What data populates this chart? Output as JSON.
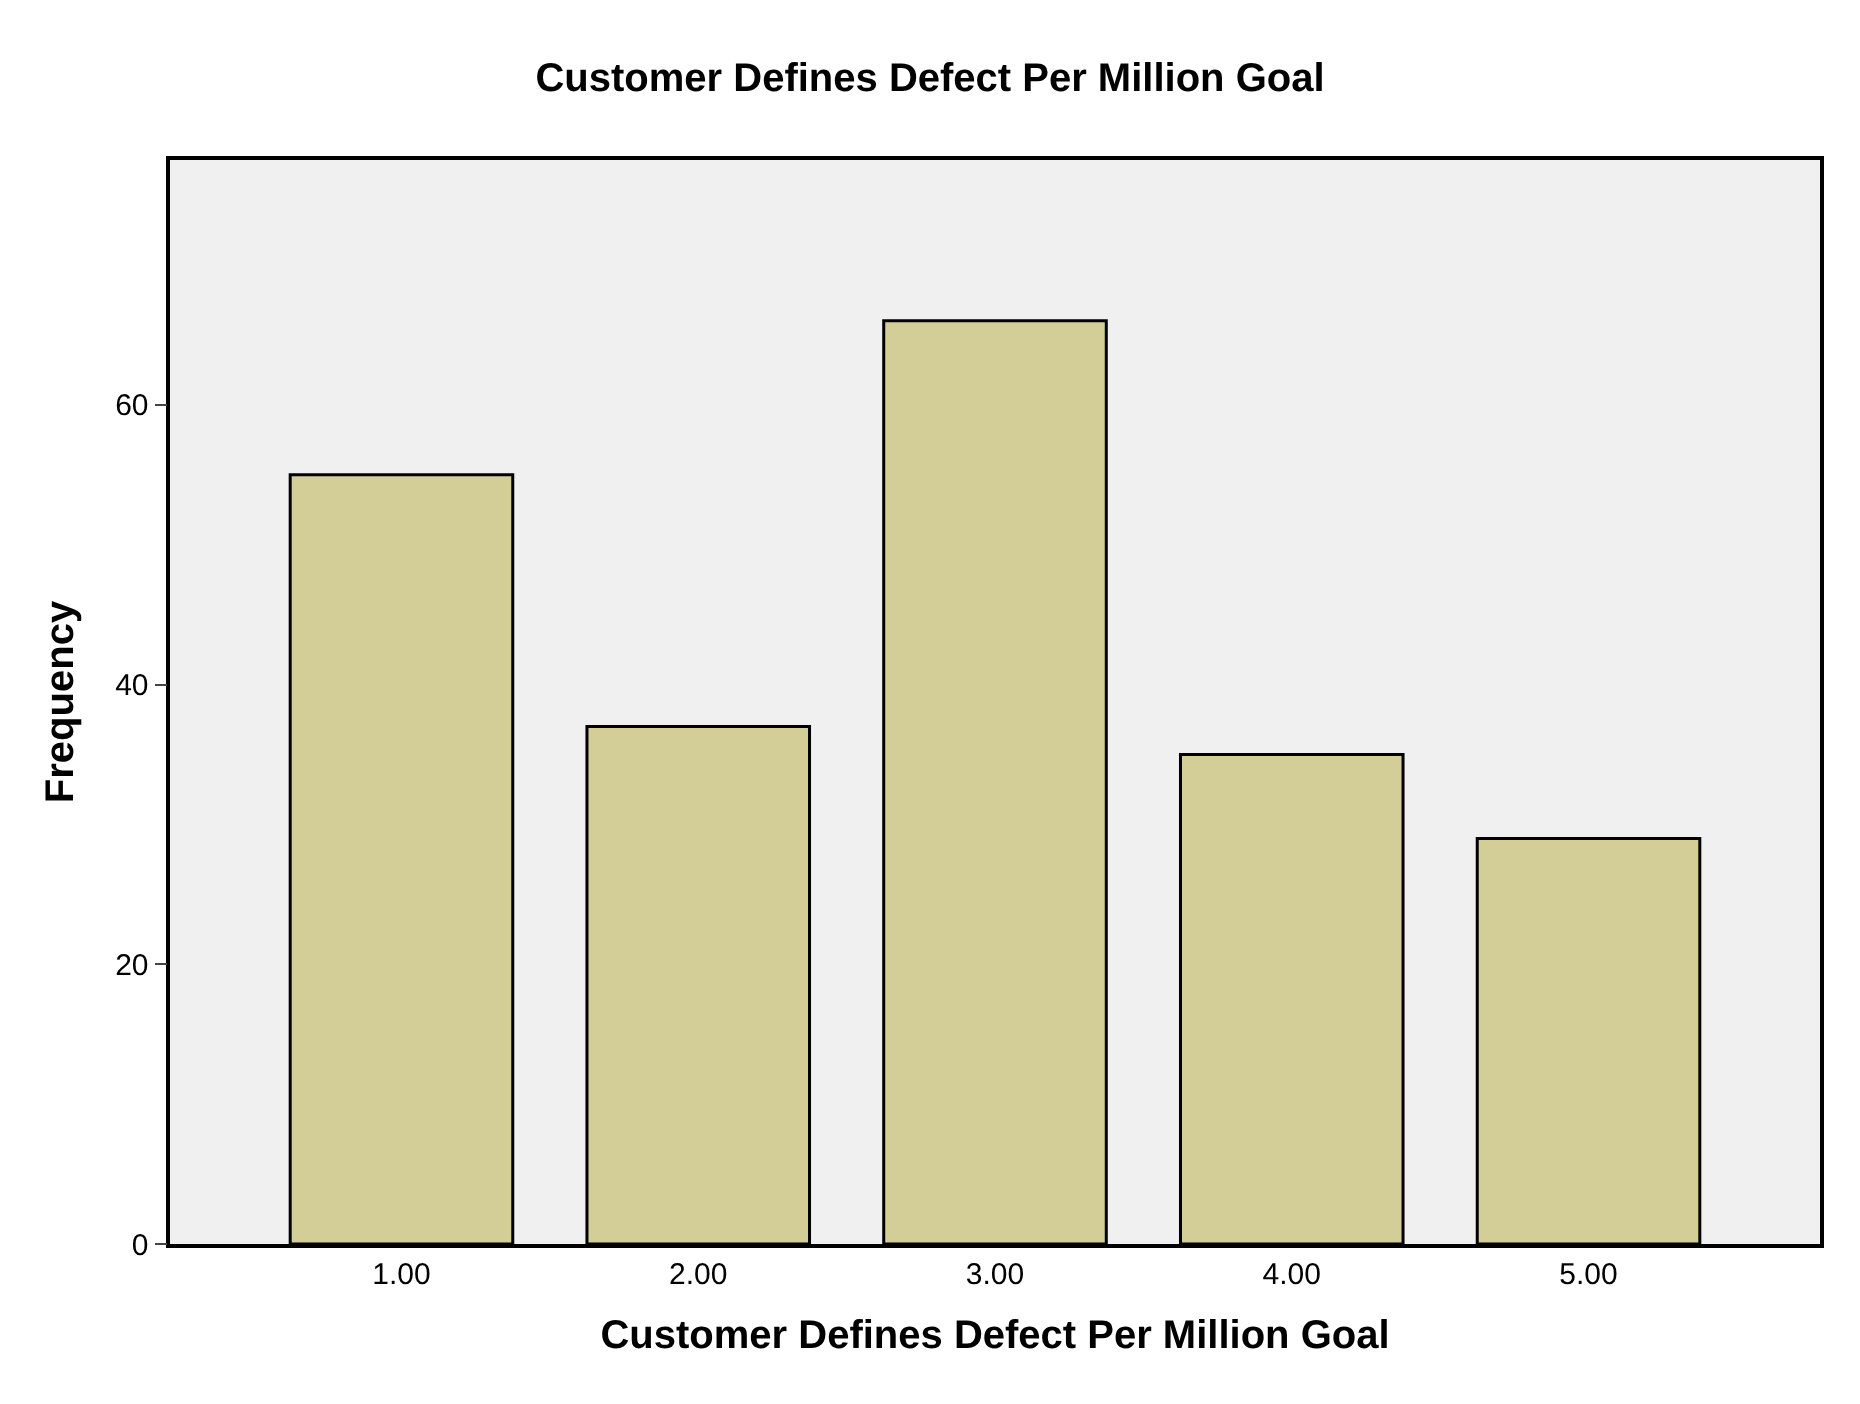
{
  "chart_data": {
    "type": "bar",
    "title": "Customer Defines Defect Per Million Goal",
    "xlabel": "Customer Defines Defect Per Million Goal",
    "ylabel": "Frequency",
    "categories": [
      "1.00",
      "2.00",
      "3.00",
      "4.00",
      "5.00"
    ],
    "values": [
      55,
      37,
      66,
      35,
      29
    ],
    "color": "#d3ce97",
    "ylim": [
      0,
      77.5
    ],
    "yticks": [
      0,
      20,
      40,
      60
    ],
    "grid": false,
    "legend": false
  }
}
